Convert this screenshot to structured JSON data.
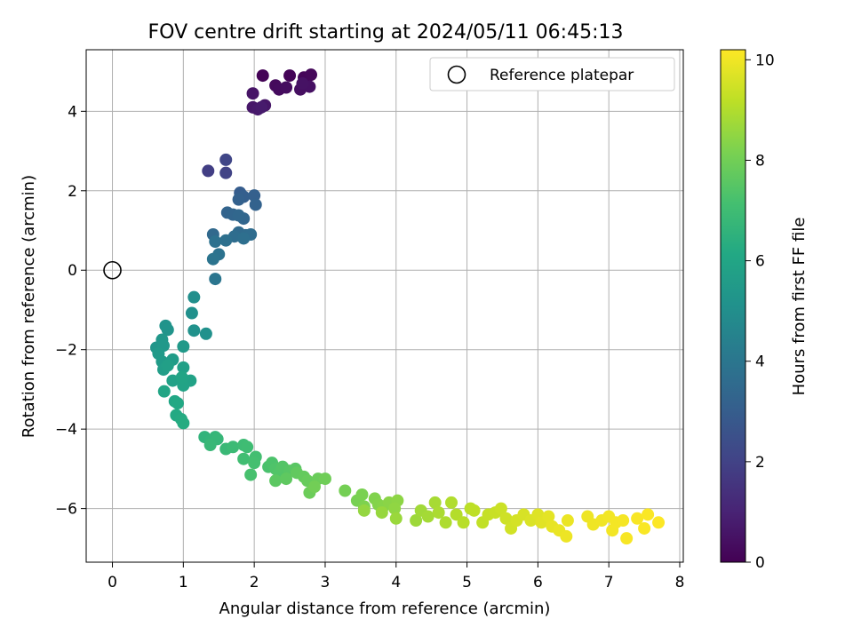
{
  "chart_data": {
    "type": "scatter",
    "title": "FOV centre drift starting at 2024/05/11 06:45:13",
    "xlabel": "Angular distance from reference (arcmin)",
    "ylabel": "Rotation from reference (arcmin)",
    "xlim": [
      -0.37,
      8.05
    ],
    "ylim": [
      -7.35,
      5.55
    ],
    "xticks": [
      0,
      1,
      2,
      3,
      4,
      5,
      6,
      7,
      8
    ],
    "yticks": [
      -6,
      -4,
      -2,
      0,
      2,
      4
    ],
    "grid": true,
    "legend": {
      "position": "top-right",
      "entries": [
        "Reference platepar"
      ]
    },
    "reference_point": {
      "x": 0,
      "y": 0
    },
    "colorbar": {
      "label": "Hours from first FF file",
      "colormap": "viridis",
      "range": [
        0,
        10.2
      ],
      "ticks": [
        0,
        2,
        4,
        6,
        8,
        10
      ]
    },
    "points": [
      {
        "x": 2.12,
        "y": 4.9,
        "t": 0.05
      },
      {
        "x": 2.5,
        "y": 4.9,
        "t": 0.1
      },
      {
        "x": 2.7,
        "y": 4.85,
        "t": 0.15
      },
      {
        "x": 2.8,
        "y": 4.92,
        "t": 0.2
      },
      {
        "x": 2.3,
        "y": 4.65,
        "t": 0.25
      },
      {
        "x": 2.35,
        "y": 4.55,
        "t": 0.3
      },
      {
        "x": 2.45,
        "y": 4.6,
        "t": 0.35
      },
      {
        "x": 2.65,
        "y": 4.55,
        "t": 0.4
      },
      {
        "x": 2.78,
        "y": 4.62,
        "t": 0.45
      },
      {
        "x": 2.68,
        "y": 4.7,
        "t": 0.5
      },
      {
        "x": 1.98,
        "y": 4.45,
        "t": 0.55
      },
      {
        "x": 2.15,
        "y": 4.15,
        "t": 0.6
      },
      {
        "x": 1.98,
        "y": 4.1,
        "t": 0.65
      },
      {
        "x": 2.05,
        "y": 4.05,
        "t": 0.7
      },
      {
        "x": 2.1,
        "y": 4.1,
        "t": 0.75
      },
      {
        "x": 1.35,
        "y": 2.5,
        "t": 1.85
      },
      {
        "x": 1.6,
        "y": 2.45,
        "t": 2.0
      },
      {
        "x": 1.6,
        "y": 2.78,
        "t": 2.1
      },
      {
        "x": 1.8,
        "y": 1.95,
        "t": 3.0
      },
      {
        "x": 1.85,
        "y": 1.85,
        "t": 3.05
      },
      {
        "x": 2.0,
        "y": 1.88,
        "t": 3.1
      },
      {
        "x": 1.78,
        "y": 1.78,
        "t": 3.15
      },
      {
        "x": 2.02,
        "y": 1.65,
        "t": 3.2
      },
      {
        "x": 1.62,
        "y": 1.45,
        "t": 3.25
      },
      {
        "x": 1.7,
        "y": 1.4,
        "t": 3.3
      },
      {
        "x": 1.85,
        "y": 1.3,
        "t": 3.35
      },
      {
        "x": 1.78,
        "y": 1.38,
        "t": 3.4
      },
      {
        "x": 1.42,
        "y": 0.9,
        "t": 3.45
      },
      {
        "x": 1.78,
        "y": 0.95,
        "t": 3.5
      },
      {
        "x": 1.88,
        "y": 0.88,
        "t": 3.55
      },
      {
        "x": 1.95,
        "y": 0.9,
        "t": 3.6
      },
      {
        "x": 1.72,
        "y": 0.85,
        "t": 3.65
      },
      {
        "x": 1.85,
        "y": 0.8,
        "t": 3.7
      },
      {
        "x": 1.6,
        "y": 0.75,
        "t": 3.75
      },
      {
        "x": 1.45,
        "y": 0.72,
        "t": 3.8
      },
      {
        "x": 1.5,
        "y": 0.4,
        "t": 3.85
      },
      {
        "x": 1.42,
        "y": 0.28,
        "t": 3.9
      },
      {
        "x": 1.45,
        "y": -0.22,
        "t": 3.95
      },
      {
        "x": 1.15,
        "y": -0.68,
        "t": 5.0
      },
      {
        "x": 1.12,
        "y": -1.08,
        "t": 5.05
      },
      {
        "x": 1.32,
        "y": -1.6,
        "t": 5.1
      },
      {
        "x": 1.15,
        "y": -1.52,
        "t": 5.15
      },
      {
        "x": 0.75,
        "y": -1.4,
        "t": 5.2
      },
      {
        "x": 0.78,
        "y": -1.5,
        "t": 5.25
      },
      {
        "x": 0.62,
        "y": -1.95,
        "t": 5.3
      },
      {
        "x": 0.7,
        "y": -1.75,
        "t": 5.35
      },
      {
        "x": 0.72,
        "y": -1.9,
        "t": 5.4
      },
      {
        "x": 1.0,
        "y": -1.92,
        "t": 5.45
      },
      {
        "x": 0.65,
        "y": -2.1,
        "t": 5.5
      },
      {
        "x": 0.7,
        "y": -2.3,
        "t": 5.55
      },
      {
        "x": 0.85,
        "y": -2.25,
        "t": 5.6
      },
      {
        "x": 0.72,
        "y": -2.5,
        "t": 5.65
      },
      {
        "x": 0.78,
        "y": -2.4,
        "t": 5.7
      },
      {
        "x": 1.0,
        "y": -2.45,
        "t": 5.75
      },
      {
        "x": 0.85,
        "y": -2.78,
        "t": 5.8
      },
      {
        "x": 1.1,
        "y": -2.78,
        "t": 5.85
      },
      {
        "x": 1.0,
        "y": -2.9,
        "t": 5.9
      },
      {
        "x": 0.98,
        "y": -2.7,
        "t": 5.95
      },
      {
        "x": 0.73,
        "y": -3.05,
        "t": 6.0
      },
      {
        "x": 0.88,
        "y": -3.3,
        "t": 6.05
      },
      {
        "x": 0.92,
        "y": -3.35,
        "t": 6.1
      },
      {
        "x": 0.9,
        "y": -3.65,
        "t": 6.15
      },
      {
        "x": 0.97,
        "y": -3.75,
        "t": 6.2
      },
      {
        "x": 1.0,
        "y": -3.85,
        "t": 6.25
      },
      {
        "x": 1.3,
        "y": -4.2,
        "t": 6.6
      },
      {
        "x": 1.38,
        "y": -4.3,
        "t": 6.65
      },
      {
        "x": 1.45,
        "y": -4.2,
        "t": 6.7
      },
      {
        "x": 1.48,
        "y": -4.25,
        "t": 6.75
      },
      {
        "x": 1.38,
        "y": -4.4,
        "t": 6.8
      },
      {
        "x": 1.6,
        "y": -4.5,
        "t": 6.85
      },
      {
        "x": 1.7,
        "y": -4.45,
        "t": 6.9
      },
      {
        "x": 1.85,
        "y": -4.4,
        "t": 6.95
      },
      {
        "x": 1.9,
        "y": -4.45,
        "t": 7.0
      },
      {
        "x": 1.85,
        "y": -4.75,
        "t": 7.05
      },
      {
        "x": 2.02,
        "y": -4.7,
        "t": 7.1
      },
      {
        "x": 2.0,
        "y": -4.85,
        "t": 7.15
      },
      {
        "x": 1.95,
        "y": -5.15,
        "t": 7.2
      },
      {
        "x": 2.2,
        "y": -4.95,
        "t": 7.25
      },
      {
        "x": 2.25,
        "y": -4.85,
        "t": 7.3
      },
      {
        "x": 2.3,
        "y": -5.0,
        "t": 7.35
      },
      {
        "x": 2.35,
        "y": -5.1,
        "t": 7.4
      },
      {
        "x": 2.4,
        "y": -4.95,
        "t": 7.45
      },
      {
        "x": 2.5,
        "y": -5.05,
        "t": 7.5
      },
      {
        "x": 2.58,
        "y": -5.0,
        "t": 7.55
      },
      {
        "x": 2.3,
        "y": -5.3,
        "t": 7.6
      },
      {
        "x": 2.45,
        "y": -5.25,
        "t": 7.65
      },
      {
        "x": 2.6,
        "y": -5.1,
        "t": 7.7
      },
      {
        "x": 2.7,
        "y": -5.2,
        "t": 7.75
      },
      {
        "x": 2.75,
        "y": -5.3,
        "t": 7.8
      },
      {
        "x": 2.9,
        "y": -5.25,
        "t": 7.85
      },
      {
        "x": 2.78,
        "y": -5.6,
        "t": 7.9
      },
      {
        "x": 3.0,
        "y": -5.25,
        "t": 7.95
      },
      {
        "x": 2.85,
        "y": -5.45,
        "t": 8.0
      },
      {
        "x": 3.28,
        "y": -5.55,
        "t": 8.05
      },
      {
        "x": 3.45,
        "y": -5.8,
        "t": 8.1
      },
      {
        "x": 3.52,
        "y": -5.65,
        "t": 8.15
      },
      {
        "x": 3.55,
        "y": -5.95,
        "t": 8.2
      },
      {
        "x": 3.7,
        "y": -5.75,
        "t": 8.25
      },
      {
        "x": 3.75,
        "y": -5.9,
        "t": 8.3
      },
      {
        "x": 3.82,
        "y": -5.95,
        "t": 8.35
      },
      {
        "x": 3.9,
        "y": -5.85,
        "t": 8.4
      },
      {
        "x": 4.02,
        "y": -5.8,
        "t": 8.45
      },
      {
        "x": 3.98,
        "y": -6.0,
        "t": 8.5
      },
      {
        "x": 3.55,
        "y": -6.05,
        "t": 8.55
      },
      {
        "x": 3.8,
        "y": -6.1,
        "t": 8.6
      },
      {
        "x": 4.0,
        "y": -6.25,
        "t": 8.65
      },
      {
        "x": 4.28,
        "y": -6.3,
        "t": 8.7
      },
      {
        "x": 4.35,
        "y": -6.05,
        "t": 8.75
      },
      {
        "x": 4.45,
        "y": -6.2,
        "t": 8.8
      },
      {
        "x": 4.55,
        "y": -5.85,
        "t": 8.85
      },
      {
        "x": 4.6,
        "y": -6.1,
        "t": 8.9
      },
      {
        "x": 4.7,
        "y": -6.35,
        "t": 8.95
      },
      {
        "x": 4.78,
        "y": -5.85,
        "t": 9.0
      },
      {
        "x": 4.85,
        "y": -6.15,
        "t": 9.05
      },
      {
        "x": 4.95,
        "y": -6.35,
        "t": 9.1
      },
      {
        "x": 5.05,
        "y": -6.0,
        "t": 9.15
      },
      {
        "x": 5.1,
        "y": -6.05,
        "t": 9.2
      },
      {
        "x": 5.22,
        "y": -6.35,
        "t": 9.25
      },
      {
        "x": 5.3,
        "y": -6.15,
        "t": 9.3
      },
      {
        "x": 5.4,
        "y": -6.1,
        "t": 9.35
      },
      {
        "x": 5.48,
        "y": -6.0,
        "t": 9.4
      },
      {
        "x": 5.55,
        "y": -6.25,
        "t": 9.45
      },
      {
        "x": 5.62,
        "y": -6.5,
        "t": 9.5
      },
      {
        "x": 5.7,
        "y": -6.3,
        "t": 9.55
      },
      {
        "x": 5.8,
        "y": -6.15,
        "t": 9.6
      },
      {
        "x": 5.9,
        "y": -6.3,
        "t": 9.65
      },
      {
        "x": 6.0,
        "y": -6.15,
        "t": 9.7
      },
      {
        "x": 6.05,
        "y": -6.35,
        "t": 9.75
      },
      {
        "x": 6.15,
        "y": -6.2,
        "t": 9.8
      },
      {
        "x": 6.2,
        "y": -6.45,
        "t": 9.85
      },
      {
        "x": 6.3,
        "y": -6.55,
        "t": 9.9
      },
      {
        "x": 6.42,
        "y": -6.3,
        "t": 9.92
      },
      {
        "x": 6.4,
        "y": -6.7,
        "t": 9.94
      },
      {
        "x": 6.7,
        "y": -6.2,
        "t": 9.96
      },
      {
        "x": 6.78,
        "y": -6.4,
        "t": 9.98
      },
      {
        "x": 6.9,
        "y": -6.3,
        "t": 10.0
      },
      {
        "x": 7.0,
        "y": -6.2,
        "t": 10.02
      },
      {
        "x": 7.05,
        "y": -6.55,
        "t": 10.04
      },
      {
        "x": 7.1,
        "y": -6.35,
        "t": 10.06
      },
      {
        "x": 7.2,
        "y": -6.3,
        "t": 10.08
      },
      {
        "x": 7.25,
        "y": -6.75,
        "t": 10.1
      },
      {
        "x": 7.4,
        "y": -6.25,
        "t": 10.12
      },
      {
        "x": 7.5,
        "y": -6.5,
        "t": 10.14
      },
      {
        "x": 7.55,
        "y": -6.15,
        "t": 10.16
      },
      {
        "x": 7.7,
        "y": -6.35,
        "t": 10.18
      }
    ]
  }
}
